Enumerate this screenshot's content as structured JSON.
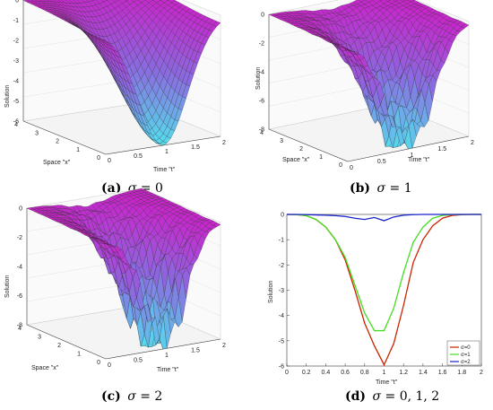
{
  "panels": [
    {
      "id": "a",
      "caption_letter": "(a)",
      "caption_sigma": "σ",
      "caption_rest": " = 0",
      "zlabel": "Solution",
      "xlabel": "Space \"x\"",
      "ylabel": "Time \"t\"",
      "z_ticks": [
        "0",
        "-1",
        "-2",
        "-3",
        "-4",
        "-5",
        "-6"
      ],
      "x_ticks": [
        "4",
        "3",
        "2",
        "1",
        "0"
      ],
      "y_ticks": [
        "0",
        "0.5",
        "1",
        "1.5",
        "2"
      ]
    },
    {
      "id": "b",
      "caption_letter": "(b)",
      "caption_sigma": "σ",
      "caption_rest": " = 1",
      "zlabel": "Solution",
      "xlabel": "Space \"x\"",
      "ylabel": "Time \"t\"",
      "z_ticks": [
        "0",
        "-2",
        "-4",
        "-6",
        "-8"
      ],
      "x_ticks": [
        "4",
        "3",
        "2",
        "1",
        "0"
      ],
      "y_ticks": [
        "0",
        "0.5",
        "1",
        "1.5",
        "2"
      ]
    },
    {
      "id": "c",
      "caption_letter": "(c)",
      "caption_sigma": "σ",
      "caption_rest": " = 2",
      "zlabel": "Solution",
      "xlabel": "Space \"x\"",
      "ylabel": "Time \"t\"",
      "z_ticks": [
        "0",
        "-2",
        "-4",
        "-6",
        "-8"
      ],
      "x_ticks": [
        "4",
        "3",
        "2",
        "1",
        "0"
      ],
      "y_ticks": [
        "0",
        "0.5",
        "1",
        "1.5",
        "2"
      ]
    },
    {
      "id": "d",
      "caption_letter": "(d)",
      "caption_sigma": "σ",
      "caption_rest": " = 0, 1, 2"
    }
  ],
  "colors": {
    "surface_top": "#cc22cc",
    "surface_mid": "#8a6ae0",
    "surface_low": "#55ddee",
    "sigma0": "#cc2200",
    "sigma1": "#44dd22",
    "sigma2": "#1a22cc"
  },
  "chart_data": {
    "type": "line",
    "title": "",
    "xlabel": "Time \"t\"",
    "ylabel": "Solution",
    "xlim": [
      0,
      2
    ],
    "ylim": [
      -6,
      0
    ],
    "x_ticks": [
      "0",
      "0.2",
      "0.4",
      "0.6",
      "0.8",
      "1",
      "1.2",
      "1.4",
      "1.6",
      "1.8",
      "2"
    ],
    "y_ticks": [
      "0",
      "-1",
      "-2",
      "-3",
      "-4",
      "-5",
      "-6"
    ],
    "grid": false,
    "legend_position": "bottom-right",
    "series": [
      {
        "name": "σ=0",
        "color": "#cc2200",
        "x": [
          0,
          0.1,
          0.2,
          0.3,
          0.4,
          0.5,
          0.6,
          0.7,
          0.8,
          0.9,
          1.0,
          1.1,
          1.2,
          1.3,
          1.4,
          1.5,
          1.6,
          1.7,
          1.8,
          1.9,
          2.0
        ],
        "y": [
          0,
          -0.01,
          -0.05,
          -0.2,
          -0.5,
          -1.0,
          -1.8,
          -3.0,
          -4.3,
          -5.2,
          -5.95,
          -5.1,
          -3.6,
          -1.9,
          -1.0,
          -0.45,
          -0.15,
          -0.04,
          -0.01,
          0,
          0
        ]
      },
      {
        "name": "σ=1",
        "color": "#44dd22",
        "x": [
          0,
          0.1,
          0.2,
          0.3,
          0.4,
          0.5,
          0.6,
          0.7,
          0.8,
          0.9,
          1.0,
          1.1,
          1.2,
          1.3,
          1.4,
          1.5,
          1.6,
          1.7,
          1.8,
          1.9,
          2.0
        ],
        "y": [
          0,
          -0.01,
          -0.05,
          -0.2,
          -0.5,
          -1.0,
          -1.7,
          -2.8,
          -3.9,
          -4.6,
          -4.6,
          -3.7,
          -2.3,
          -1.1,
          -0.5,
          -0.15,
          -0.04,
          -0.01,
          0,
          0,
          0
        ]
      },
      {
        "name": "σ=2",
        "color": "#1a22cc",
        "x": [
          0,
          0.1,
          0.2,
          0.3,
          0.4,
          0.5,
          0.6,
          0.7,
          0.8,
          0.9,
          1.0,
          1.1,
          1.2,
          1.3,
          1.4,
          1.5,
          1.6,
          1.7,
          1.8,
          1.9,
          2.0
        ],
        "y": [
          0,
          0,
          -0.01,
          -0.02,
          -0.03,
          -0.05,
          -0.08,
          -0.15,
          -0.2,
          -0.12,
          -0.25,
          -0.1,
          -0.03,
          -0.01,
          0,
          0,
          0,
          0,
          0,
          0,
          0
        ]
      }
    ]
  }
}
